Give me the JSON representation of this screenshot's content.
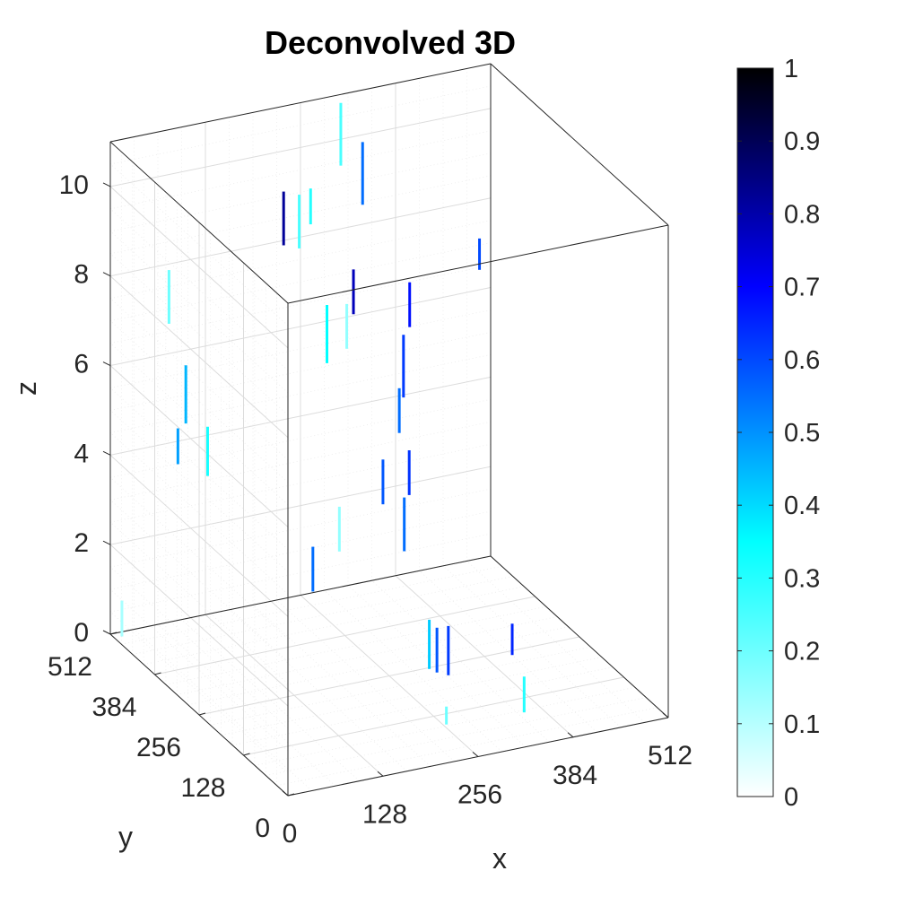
{
  "chart_data": {
    "type": "scatter",
    "title": "Deconvolved 3D",
    "xlabel": "x",
    "ylabel": "y",
    "zlabel": "z",
    "xlim": [
      0,
      512
    ],
    "ylim": [
      0,
      512
    ],
    "zlim": [
      0,
      11
    ],
    "xticks": [
      0,
      128,
      256,
      384,
      512
    ],
    "yticks": [
      0,
      128,
      256,
      384,
      512
    ],
    "zticks": [
      0,
      2,
      4,
      6,
      8,
      10
    ],
    "grid": true,
    "colorbar": {
      "range": [
        0,
        1
      ],
      "ticks": [
        0,
        0.1,
        0.2,
        0.3,
        0.4,
        0.5,
        0.6,
        0.7,
        0.8,
        0.9,
        1
      ],
      "colormap_stops": [
        {
          "v": 0.0,
          "color": "#ffffff"
        },
        {
          "v": 0.35,
          "color": "#00ffff"
        },
        {
          "v": 0.7,
          "color": "#0000ff"
        },
        {
          "v": 1.0,
          "color": "#000000"
        }
      ]
    },
    "points": [
      {
        "x": 195,
        "y": 430,
        "z0": 8.6,
        "z1": 9.8,
        "v": 0.82
      },
      {
        "x": 275,
        "y": 400,
        "z0": 7.0,
        "z1": 8.0,
        "v": 0.78
      },
      {
        "x": 320,
        "y": 470,
        "z0": 8.8,
        "z1": 10.2,
        "v": 0.55
      },
      {
        "x": 332,
        "y": 360,
        "z0": 6.8,
        "z1": 7.8,
        "v": 0.68
      },
      {
        "x": 290,
        "y": 300,
        "z0": 5.0,
        "z1": 6.0,
        "v": 0.55
      },
      {
        "x": 305,
        "y": 320,
        "z0": 5.6,
        "z1": 7.0,
        "v": 0.62
      },
      {
        "x": 280,
        "y": 250,
        "z0": 4.0,
        "z1": 5.0,
        "v": 0.63
      },
      {
        "x": 240,
        "y": 240,
        "z0": 4.0,
        "z1": 5.0,
        "v": 0.58
      },
      {
        "x": 250,
        "y": 200,
        "z0": 3.2,
        "z1": 4.4,
        "v": 0.55
      },
      {
        "x": 300,
        "y": 180,
        "z0": 0.4,
        "z1": 1.5,
        "v": 0.62
      },
      {
        "x": 280,
        "y": 170,
        "z0": 0.6,
        "z1": 1.6,
        "v": 0.58
      },
      {
        "x": 265,
        "y": 160,
        "z0": 0.8,
        "z1": 1.9,
        "v": 0.42
      },
      {
        "x": 400,
        "y": 210,
        "z0": 0.3,
        "z1": 1.0,
        "v": 0.65
      },
      {
        "x": 40,
        "y": 380,
        "z0": 5.5,
        "z1": 6.8,
        "v": 0.45
      },
      {
        "x": 20,
        "y": 360,
        "z0": 4.8,
        "z1": 5.6,
        "v": 0.48
      },
      {
        "x": 60,
        "y": 360,
        "z0": 4.4,
        "z1": 5.5,
        "v": 0.32
      },
      {
        "x": 155,
        "y": 260,
        "z0": 2.2,
        "z1": 3.2,
        "v": 0.55
      },
      {
        "x": 440,
        "y": 390,
        "z0": 7.5,
        "z1": 8.2,
        "v": 0.6
      },
      {
        "x": 230,
        "y": 380,
        "z0": 6.2,
        "z1": 7.5,
        "v": 0.35
      },
      {
        "x": 230,
        "y": 460,
        "z0": 8.2,
        "z1": 9.4,
        "v": 0.25
      },
      {
        "x": 250,
        "y": 470,
        "z0": 8.6,
        "z1": 9.4,
        "v": 0.3
      },
      {
        "x": 300,
        "y": 490,
        "z0": 9.6,
        "z1": 11.0,
        "v": 0.25
      },
      {
        "x": 360,
        "y": 90,
        "z0": 0.0,
        "z1": 0.8,
        "v": 0.3
      },
      {
        "x": 260,
        "y": 100,
        "z0": 0.0,
        "z1": 0.4,
        "v": 0.2
      },
      {
        "x": 50,
        "y": 450,
        "z0": 7.2,
        "z1": 8.4,
        "v": 0.2
      },
      {
        "x": 200,
        "y": 280,
        "z0": 2.8,
        "z1": 3.8,
        "v": 0.15
      },
      {
        "x": 10,
        "y": 500,
        "z0": 0.0,
        "z1": 0.8,
        "v": 0.12
      },
      {
        "x": 280,
        "y": 430,
        "z0": 6.0,
        "z1": 7.0,
        "v": 0.15
      }
    ]
  }
}
